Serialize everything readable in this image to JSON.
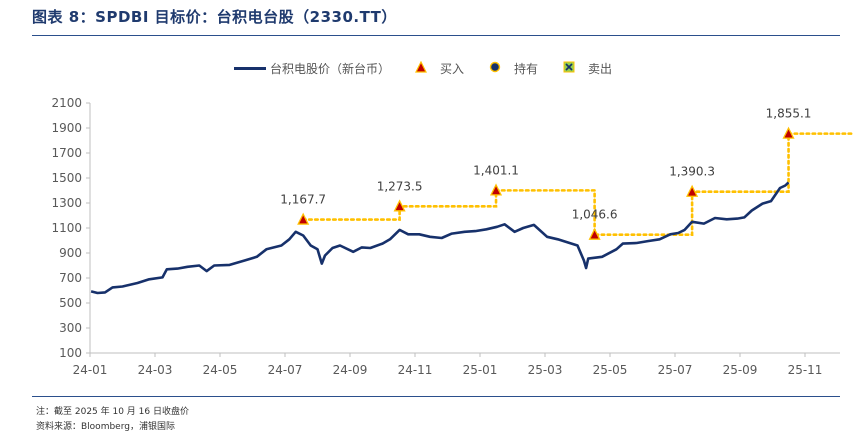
{
  "header": {
    "title": "图表 8：SPDBI 目标价：台积电台股（2330.TT）"
  },
  "footer": {
    "note": "注：截至 2025 年 10 月 16 日收盘价",
    "source": "资料来源：Bloomberg，浦银国际"
  },
  "colors": {
    "price_line": "#17316b",
    "target_line": "#ffc000",
    "marker_fill": "#c00000",
    "accent_rule": "#2b4f8c"
  },
  "chart_data": {
    "type": "line",
    "title": "",
    "xlabel": "",
    "ylabel": "",
    "ylim": [
      100,
      2100
    ],
    "yticks": [
      100,
      300,
      500,
      700,
      900,
      1100,
      1300,
      1500,
      1700,
      1900,
      2100
    ],
    "xticks": [
      "24-01",
      "24-03",
      "24-05",
      "24-07",
      "24-09",
      "24-11",
      "25-01",
      "25-03",
      "25-05",
      "25-07",
      "25-09",
      "25-11"
    ],
    "legend": {
      "position": "top",
      "entries": [
        {
          "label": "台积电股价（新台币）",
          "symbol": "line-icon"
        },
        {
          "label": "买入",
          "symbol": "triangle-icon"
        },
        {
          "label": "持有",
          "symbol": "circle-icon"
        },
        {
          "label": "卖出",
          "symbol": "square-x-icon"
        }
      ]
    },
    "grid": false,
    "series": [
      {
        "name": "台积电股价（新台币）",
        "points": [
          [
            "24-01-02",
            593
          ],
          [
            "24-01-08",
            580
          ],
          [
            "24-01-15",
            585
          ],
          [
            "24-01-22",
            625
          ],
          [
            "24-02-01",
            632
          ],
          [
            "24-02-15",
            660
          ],
          [
            "24-02-26",
            690
          ],
          [
            "24-03-08",
            705
          ],
          [
            "24-03-12",
            770
          ],
          [
            "24-03-22",
            775
          ],
          [
            "24-04-01",
            790
          ],
          [
            "24-04-12",
            800
          ],
          [
            "24-04-19",
            755
          ],
          [
            "24-04-26",
            800
          ],
          [
            "24-05-10",
            805
          ],
          [
            "24-05-24",
            840
          ],
          [
            "24-06-05",
            870
          ],
          [
            "24-06-14",
            930
          ],
          [
            "24-06-28",
            960
          ],
          [
            "24-07-05",
            1010
          ],
          [
            "24-07-11",
            1070
          ],
          [
            "24-07-18",
            1040
          ],
          [
            "24-07-25",
            960
          ],
          [
            "24-08-01",
            930
          ],
          [
            "24-08-05",
            815
          ],
          [
            "24-08-08",
            880
          ],
          [
            "24-08-15",
            940
          ],
          [
            "24-08-22",
            960
          ],
          [
            "24-09-04",
            910
          ],
          [
            "24-09-12",
            945
          ],
          [
            "24-09-20",
            940
          ],
          [
            "24-10-01",
            975
          ],
          [
            "24-10-08",
            1010
          ],
          [
            "24-10-17",
            1085
          ],
          [
            "24-10-25",
            1050
          ],
          [
            "24-11-05",
            1050
          ],
          [
            "24-11-15",
            1030
          ],
          [
            "24-11-26",
            1020
          ],
          [
            "24-12-05",
            1055
          ],
          [
            "24-12-17",
            1070
          ],
          [
            "24-12-27",
            1075
          ],
          [
            "25-01-07",
            1090
          ],
          [
            "25-01-17",
            1110
          ],
          [
            "25-01-24",
            1130
          ],
          [
            "25-02-03",
            1070
          ],
          [
            "25-02-11",
            1100
          ],
          [
            "25-02-21",
            1125
          ],
          [
            "25-03-03",
            1030
          ],
          [
            "25-03-13",
            1010
          ],
          [
            "25-03-24",
            980
          ],
          [
            "25-04-01",
            960
          ],
          [
            "25-04-07",
            840
          ],
          [
            "25-04-09",
            780
          ],
          [
            "25-04-11",
            855
          ],
          [
            "25-04-24",
            870
          ],
          [
            "25-05-07",
            930
          ],
          [
            "25-05-13",
            975
          ],
          [
            "25-05-26",
            980
          ],
          [
            "25-06-06",
            995
          ],
          [
            "25-06-17",
            1010
          ],
          [
            "25-06-27",
            1050
          ],
          [
            "25-07-04",
            1060
          ],
          [
            "25-07-10",
            1085
          ],
          [
            "25-07-17",
            1150
          ],
          [
            "25-07-28",
            1135
          ],
          [
            "25-08-08",
            1180
          ],
          [
            "25-08-19",
            1170
          ],
          [
            "25-08-29",
            1175
          ],
          [
            "25-09-05",
            1185
          ],
          [
            "25-09-12",
            1240
          ],
          [
            "25-09-22",
            1295
          ],
          [
            "25-09-30",
            1315
          ],
          [
            "25-10-08",
            1420
          ],
          [
            "25-10-13",
            1440
          ],
          [
            "25-10-16",
            1465
          ]
        ]
      },
      {
        "name": "目标价",
        "steps": [
          {
            "start": "24-07-18",
            "end": "24-10-17",
            "value": 1167.7,
            "label": "1,167.7",
            "rating": "买入"
          },
          {
            "start": "24-10-17",
            "end": "25-01-16",
            "value": 1273.5,
            "label": "1,273.5",
            "rating": "买入"
          },
          {
            "start": "25-01-16",
            "end": "25-04-17",
            "value": 1401.1,
            "label": "1,401.1",
            "rating": "买入"
          },
          {
            "start": "25-04-17",
            "end": "25-07-17",
            "value": 1046.6,
            "label": "1,046.6",
            "rating": "买入"
          },
          {
            "start": "25-07-17",
            "end": "25-10-16",
            "value": 1390.3,
            "label": "1,390.3",
            "rating": "买入"
          },
          {
            "start": "25-10-16",
            "end": "25-12-15",
            "value": 1855.1,
            "label": "1,855.1",
            "rating": "买入"
          }
        ]
      }
    ]
  }
}
